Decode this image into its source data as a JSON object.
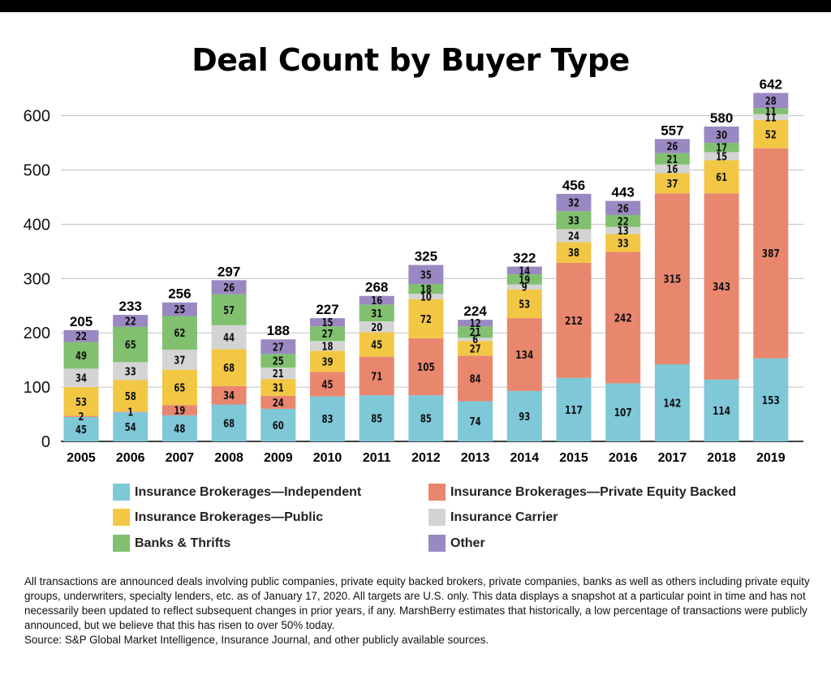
{
  "title": "Deal Count by Buyer Type",
  "legend": [
    {
      "label": "Insurance Brokerages—Independent",
      "color": "#7ec8d8"
    },
    {
      "label": "Insurance Brokerages—Private Equity Backed",
      "color": "#e8866e"
    },
    {
      "label": "Insurance Brokerages—Public",
      "color": "#f2c744"
    },
    {
      "label": "Insurance Carrier",
      "color": "#d4d4d4"
    },
    {
      "label": "Banks & Thrifts",
      "color": "#80c06f"
    },
    {
      "label": "Other",
      "color": "#9a88c2"
    }
  ],
  "footnote": {
    "text": "All transactions are announced deals involving public companies, private equity backed brokers, private companies, banks as well as others including private equity groups, underwriters, specialty lenders, etc. as of January 17, 2020.  All targets are U.S. only. This data displays a snapshot at a particular point in time and has not necessarily been updated to reflect subsequent changes in prior years, if any. MarshBerry estimates that historically, a low percentage of transactions were publicly announced, but we believe that this has risen to over 50% today.",
    "source": "Source:  S&P Global Market Intelligence, Insurance Journal, and other publicly available sources."
  },
  "chart_data": {
    "type": "bar",
    "stacked": true,
    "categories": [
      "2005",
      "2006",
      "2007",
      "2008",
      "2009",
      "2010",
      "2011",
      "2012",
      "2013",
      "2014",
      "2015",
      "2016",
      "2017",
      "2018",
      "2019"
    ],
    "series": [
      {
        "name": "Insurance Brokerages—Independent",
        "color": "#7ec8d8",
        "values": [
          45,
          54,
          48,
          68,
          60,
          83,
          85,
          85,
          74,
          93,
          117,
          107,
          142,
          114,
          153
        ]
      },
      {
        "name": "Insurance Brokerages—Private Equity Backed",
        "color": "#e8866e",
        "values": [
          2,
          1,
          19,
          34,
          24,
          45,
          71,
          105,
          84,
          134,
          212,
          242,
          315,
          343,
          387
        ]
      },
      {
        "name": "Insurance Brokerages—Public",
        "color": "#f2c744",
        "values": [
          53,
          58,
          65,
          68,
          31,
          39,
          45,
          72,
          27,
          53,
          38,
          33,
          37,
          61,
          52
        ]
      },
      {
        "name": "Insurance Carrier",
        "color": "#d4d4d4",
        "values": [
          34,
          33,
          37,
          44,
          21,
          18,
          20,
          10,
          6,
          9,
          24,
          13,
          16,
          15,
          11
        ]
      },
      {
        "name": "Banks & Thrifts",
        "color": "#80c06f",
        "values": [
          49,
          65,
          62,
          57,
          25,
          27,
          31,
          18,
          21,
          19,
          33,
          22,
          21,
          17,
          11
        ]
      },
      {
        "name": "Other",
        "color": "#9a88c2",
        "values": [
          22,
          22,
          25,
          26,
          27,
          15,
          16,
          35,
          12,
          14,
          32,
          26,
          26,
          30,
          28
        ]
      }
    ],
    "totals": [
      205,
      233,
      256,
      297,
      188,
      227,
      268,
      325,
      224,
      322,
      456,
      443,
      557,
      580,
      642
    ],
    "ylim": [
      0,
      650
    ],
    "yticks": [
      0,
      100,
      200,
      300,
      400,
      500,
      600
    ],
    "grid": true,
    "legend_position": "bottom"
  }
}
